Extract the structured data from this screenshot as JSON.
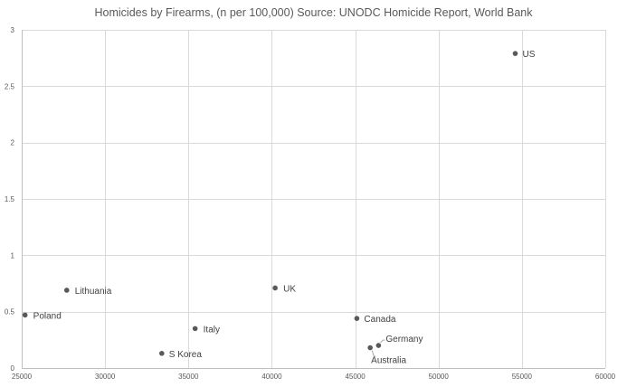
{
  "chart_data": {
    "type": "scatter",
    "title": "Homicides by Firearms, (n per 100,000) Source: UNODC Homicide Report, World Bank",
    "xlabel": "",
    "ylabel": "",
    "xlim": [
      25000,
      60000
    ],
    "ylim": [
      0,
      3
    ],
    "xticks": [
      25000,
      30000,
      35000,
      40000,
      45000,
      50000,
      55000,
      60000
    ],
    "yticks": [
      0,
      0.5,
      1,
      1.5,
      2,
      2.5,
      3
    ],
    "xtick_labels": [
      "25000",
      "30000",
      "35000",
      "40000",
      "45000",
      "50000",
      "55000",
      "60000"
    ],
    "ytick_labels": [
      "0",
      "0.5",
      "1",
      "1.5",
      "2",
      "2.5",
      "3"
    ],
    "grid": true,
    "legend": "none",
    "marker_color": "#595959",
    "points": [
      {
        "label": "US",
        "x": 54600,
        "y": 2.79
      },
      {
        "label": "Lithuania",
        "x": 27700,
        "y": 0.69
      },
      {
        "label": "Poland",
        "x": 25200,
        "y": 0.47
      },
      {
        "label": "UK",
        "x": 40200,
        "y": 0.71
      },
      {
        "label": "Italy",
        "x": 35400,
        "y": 0.35
      },
      {
        "label": "S Korea",
        "x": 33400,
        "y": 0.13
      },
      {
        "label": "Canada",
        "x": 45100,
        "y": 0.44
      },
      {
        "label": "Germany",
        "x": 46400,
        "y": 0.2
      },
      {
        "label": "Australia",
        "x": 45900,
        "y": 0.18
      }
    ]
  }
}
